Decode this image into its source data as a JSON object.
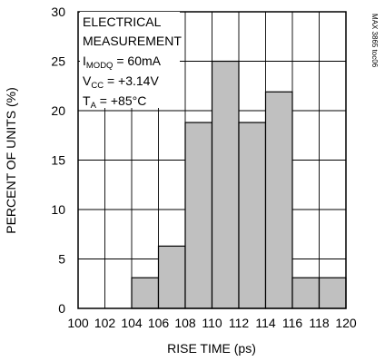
{
  "chart_data": {
    "type": "bar",
    "title": "",
    "xlabel": "RISE TIME (ps)",
    "ylabel": "PERCENT OF UNITS (%)",
    "xlim": [
      100,
      120
    ],
    "ylim": [
      0,
      30
    ],
    "x_ticks": [
      "100",
      "102",
      "104",
      "106",
      "108",
      "110",
      "112",
      "114",
      "116",
      "118",
      "120"
    ],
    "y_ticks": [
      "0",
      "5",
      "10",
      "15",
      "20",
      "25",
      "30"
    ],
    "bin_width": 2,
    "bins": [
      {
        "start": 100,
        "end": 102,
        "value": 0
      },
      {
        "start": 102,
        "end": 104,
        "value": 0
      },
      {
        "start": 104,
        "end": 106,
        "value": 3.1
      },
      {
        "start": 106,
        "end": 108,
        "value": 6.3
      },
      {
        "start": 108,
        "end": 110,
        "value": 18.8
      },
      {
        "start": 110,
        "end": 112,
        "value": 25
      },
      {
        "start": 112,
        "end": 114,
        "value": 18.8
      },
      {
        "start": 114,
        "end": 116,
        "value": 21.9
      },
      {
        "start": 116,
        "end": 118,
        "value": 3.1
      },
      {
        "start": 118,
        "end": 120,
        "value": 3.1
      }
    ],
    "grid": true,
    "bar_color": "#c0c0c0",
    "annotation": {
      "line1": "ELECTRICAL",
      "line2": "MEASUREMENT",
      "line3_main": "I",
      "line3_sub": "MODQ",
      "line3_rest": " = 60mA",
      "line4_main": "V",
      "line4_sub": "CC",
      "line4_rest": " = +3.14V",
      "line5_main": "T",
      "line5_sub": "A",
      "line5_rest": " = +85°C"
    },
    "file_tag": "MAX 3865 toc06"
  }
}
